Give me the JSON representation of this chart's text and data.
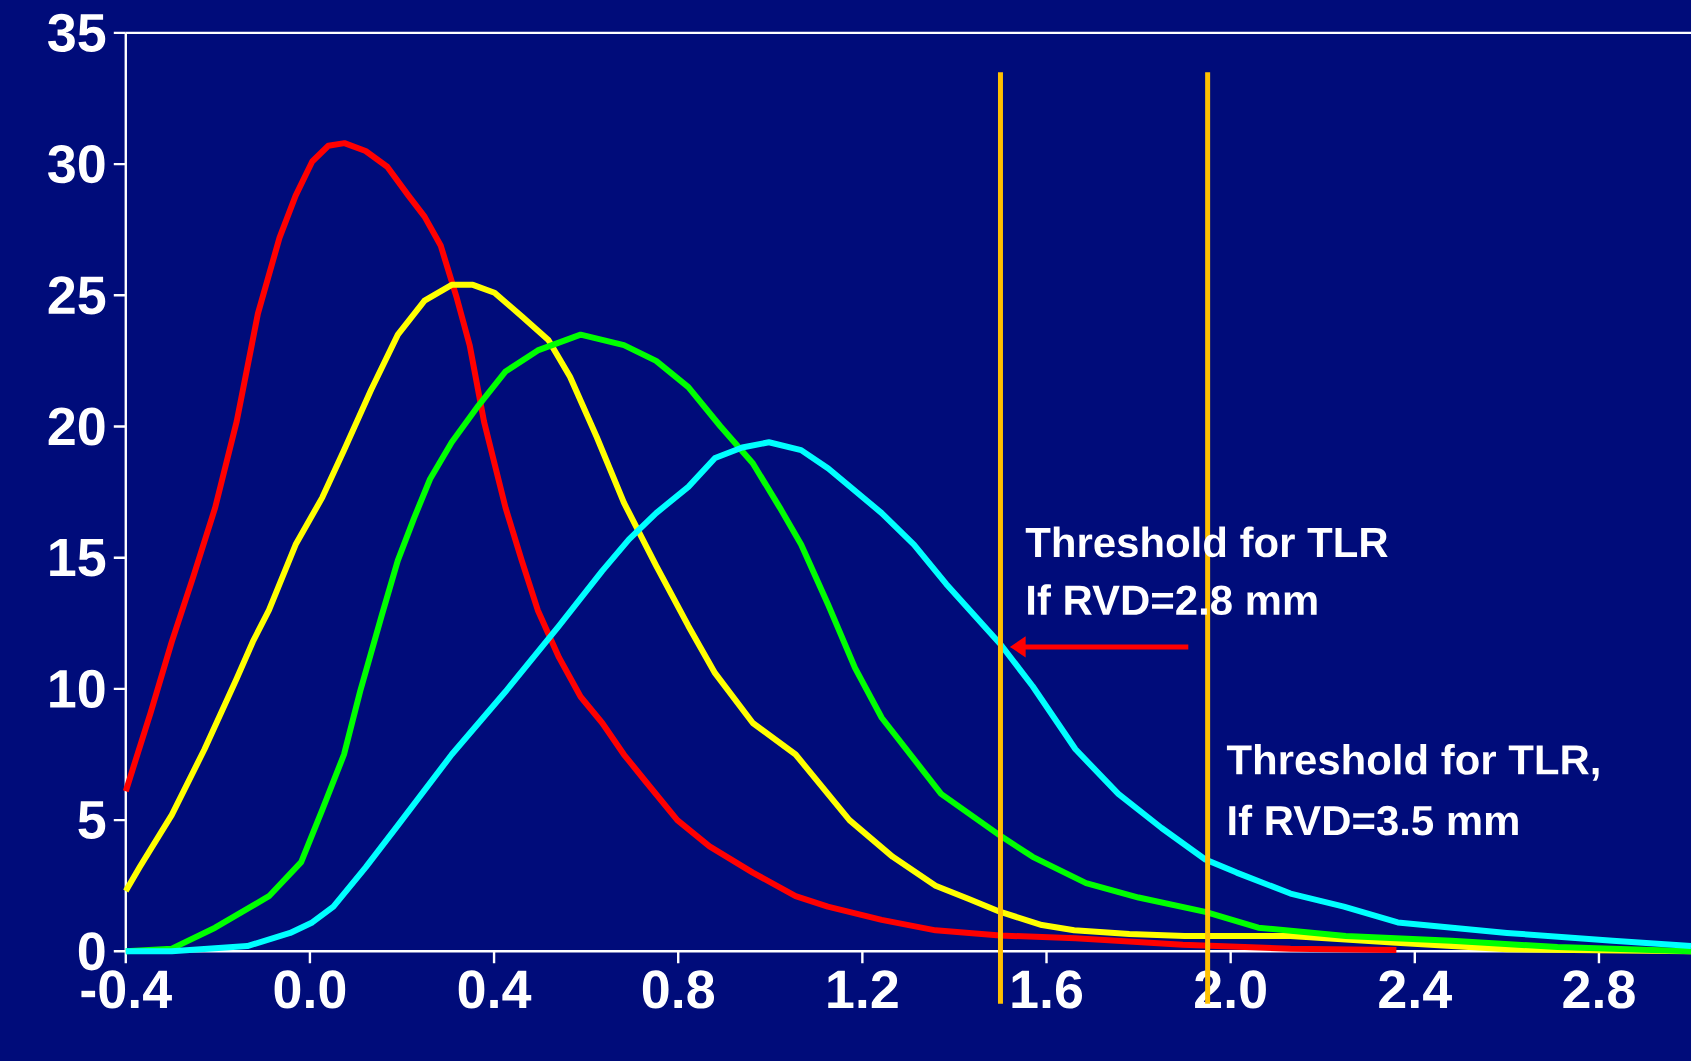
{
  "chart_data": {
    "type": "line",
    "xlim": [
      -0.4,
      3.0
    ],
    "ylim": [
      0,
      35
    ],
    "xticks": [
      -0.4,
      {
        "value": 0,
        "label": "0.0"
      },
      0.4,
      0.8,
      1.2,
      1.6,
      {
        "value": 2,
        "label": "2.0"
      },
      2.4,
      2.8
    ],
    "yticks": [
      0,
      5,
      10,
      15,
      20,
      25,
      30,
      35
    ],
    "series": [
      {
        "color": "#ff0000",
        "x": [
          -0.4,
          -0.346,
          -0.3,
          -0.253,
          -0.206,
          -0.159,
          -0.113,
          -0.066,
          -0.031,
          0.005,
          0.04,
          0.075,
          0.121,
          0.168,
          0.214,
          0.249,
          0.284,
          0.319,
          0.347,
          0.378,
          0.425,
          0.46,
          0.495,
          0.541,
          0.588,
          0.635,
          0.682,
          0.728,
          0.798,
          0.868,
          0.962,
          1.055,
          1.125,
          1.242,
          1.359,
          1.499,
          1.663,
          1.896,
          2.13,
          2.36
        ],
        "values": [
          6.1,
          9.1,
          11.8,
          14.3,
          16.9,
          20.2,
          24.3,
          27.2,
          28.8,
          30.1,
          30.7,
          30.8,
          30.5,
          29.9,
          28.8,
          28.0,
          26.9,
          24.9,
          23.1,
          20.2,
          16.9,
          14.9,
          13.0,
          11.2,
          9.7,
          8.7,
          7.5,
          6.5,
          5.0,
          4.0,
          3.0,
          2.1,
          1.7,
          1.2,
          0.8,
          0.6,
          0.5,
          0.25,
          0.1,
          0.05
        ]
      },
      {
        "color": "#ffff00",
        "x": [
          -0.4,
          -0.37,
          -0.3,
          -0.229,
          -0.159,
          -0.124,
          -0.089,
          -0.031,
          0.027,
          0.074,
          0.133,
          0.191,
          0.249,
          0.308,
          0.354,
          0.401,
          0.46,
          0.518,
          0.565,
          0.623,
          0.682,
          0.752,
          0.822,
          0.88,
          0.962,
          1.055,
          1.172,
          1.266,
          1.359,
          1.43,
          1.5,
          1.59,
          1.66,
          1.78,
          1.9,
          2.13,
          2.36,
          2.6,
          3.0
        ],
        "values": [
          2.3,
          3.2,
          5.2,
          7.7,
          10.4,
          11.8,
          13.0,
          15.5,
          17.3,
          19.1,
          21.4,
          23.5,
          24.8,
          25.4,
          25.4,
          25.1,
          24.2,
          23.3,
          21.9,
          19.6,
          17.1,
          14.7,
          12.4,
          10.6,
          8.7,
          7.5,
          5.0,
          3.6,
          2.5,
          2.0,
          1.5,
          1.0,
          0.8,
          0.66,
          0.58,
          0.58,
          0.33,
          0.08,
          0
        ]
      },
      {
        "color": "#00ff00",
        "x": [
          -0.4,
          -0.3,
          -0.206,
          -0.089,
          -0.019,
          0.027,
          0.074,
          0.109,
          0.156,
          0.191,
          0.226,
          0.261,
          0.308,
          0.366,
          0.425,
          0.495,
          0.588,
          0.682,
          0.752,
          0.822,
          0.892,
          0.962,
          1.021,
          1.067,
          1.126,
          1.184,
          1.242,
          1.371,
          1.5,
          1.57,
          1.686,
          1.8,
          1.945,
          2.06,
          2.25,
          2.48,
          2.71,
          3.0
        ],
        "values": [
          0,
          0.1,
          0.9,
          2.1,
          3.4,
          5.4,
          7.5,
          9.9,
          12.8,
          14.9,
          16.5,
          18.0,
          19.4,
          20.8,
          22.1,
          22.9,
          23.5,
          23.1,
          22.5,
          21.5,
          20.0,
          18.6,
          16.9,
          15.5,
          13.2,
          10.8,
          8.9,
          6.0,
          4.4,
          3.6,
          2.6,
          2.05,
          1.5,
          0.9,
          0.58,
          0.4,
          0.16,
          0
        ]
      },
      {
        "color": "#00ffff",
        "x": [
          -0.4,
          -0.3,
          -0.136,
          -0.043,
          0.005,
          0.051,
          0.121,
          0.191,
          0.308,
          0.425,
          0.541,
          0.635,
          0.693,
          0.752,
          0.822,
          0.88,
          0.939,
          0.997,
          1.067,
          1.126,
          1.242,
          1.312,
          1.382,
          1.5,
          1.57,
          1.663,
          1.756,
          1.85,
          1.945,
          2.013,
          2.13,
          2.246,
          2.363,
          2.6,
          2.83,
          3.0
        ],
        "values": [
          0,
          0,
          0.2,
          0.7,
          1.1,
          1.7,
          3.2,
          4.8,
          7.5,
          9.9,
          12.4,
          14.5,
          15.7,
          16.7,
          17.7,
          18.8,
          19.2,
          19.4,
          19.1,
          18.4,
          16.7,
          15.5,
          14.0,
          11.7,
          10.1,
          7.7,
          6.0,
          4.7,
          3.5,
          3.0,
          2.2,
          1.7,
          1.1,
          0.7,
          0.4,
          0.2
        ]
      }
    ],
    "ref_lines": [
      {
        "axis": "x",
        "value": 1.5,
        "color": "#ffc000"
      },
      {
        "axis": "x",
        "value": 1.95,
        "color": "#ffc000"
      }
    ],
    "annotations": [
      "Threshold for TLR",
      "If RVD=2.8 mm",
      "Threshold for TLR,",
      "If RVD=3.5 mm"
    ]
  }
}
